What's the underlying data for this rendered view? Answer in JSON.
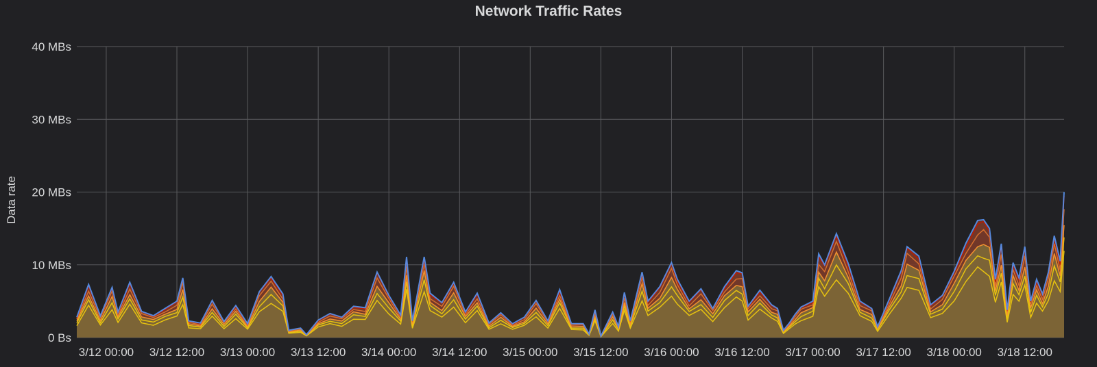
{
  "chart_data": {
    "type": "area",
    "title": "Network Traffic Rates",
    "xlabel": "",
    "ylabel": "Data rate",
    "y_ticks": [
      "0 Bs",
      "10 MBs",
      "20 MBs",
      "30 MBs",
      "40 MBs"
    ],
    "ylim": [
      0,
      40
    ],
    "y_unit": "MBs",
    "x_ticks": [
      "3/12 00:00",
      "3/12 12:00",
      "3/13 00:00",
      "3/13 12:00",
      "3/14 00:00",
      "3/14 12:00",
      "3/15 00:00",
      "3/15 12:00",
      "3/16 00:00",
      "3/16 12:00",
      "3/17 00:00",
      "3/17 12:00",
      "3/18 00:00",
      "3/18 12:00"
    ],
    "xlim": [
      "3/11 19:00",
      "3/18 18:40"
    ],
    "grid": true,
    "stacked": true,
    "series_colors": [
      "#f2cc0c",
      "#f2cc0c",
      "#ff9830",
      "#e0752d",
      "#bf1b00",
      "#5794f2"
    ],
    "total_profile": [
      [
        "3/11 19:00",
        2.8
      ],
      [
        "3/11 21:00",
        7.3
      ],
      [
        "3/11 23:00",
        3.0
      ],
      [
        "3/12 01:00",
        6.9
      ],
      [
        "3/12 02:00",
        3.5
      ],
      [
        "3/12 04:00",
        7.6
      ],
      [
        "3/12 06:00",
        3.6
      ],
      [
        "3/12 08:00",
        3.0
      ],
      [
        "3/12 10:00",
        4.0
      ],
      [
        "3/12 12:00",
        5.0
      ],
      [
        "3/12 13:00",
        8.2
      ],
      [
        "3/12 14:00",
        2.3
      ],
      [
        "3/12 16:00",
        2.0
      ],
      [
        "3/12 18:00",
        5.1
      ],
      [
        "3/12 20:00",
        2.2
      ],
      [
        "3/12 22:00",
        4.4
      ],
      [
        "3/13 00:00",
        1.9
      ],
      [
        "3/13 02:00",
        6.3
      ],
      [
        "3/13 04:00",
        8.4
      ],
      [
        "3/13 06:00",
        6.0
      ],
      [
        "3/13 07:00",
        1.0
      ],
      [
        "3/13 09:00",
        1.3
      ],
      [
        "3/13 10:00",
        0.4
      ],
      [
        "3/13 12:00",
        2.4
      ],
      [
        "3/13 14:00",
        3.3
      ],
      [
        "3/13 16:00",
        2.8
      ],
      [
        "3/13 18:00",
        4.3
      ],
      [
        "3/13 20:00",
        4.1
      ],
      [
        "3/13 22:00",
        9.0
      ],
      [
        "3/14 00:00",
        5.8
      ],
      [
        "3/14 02:00",
        3.1
      ],
      [
        "3/14 03:00",
        11.1
      ],
      [
        "3/14 04:00",
        2.3
      ],
      [
        "3/14 06:00",
        11.1
      ],
      [
        "3/14 07:00",
        6.1
      ],
      [
        "3/14 09:00",
        4.8
      ],
      [
        "3/14 11:00",
        7.6
      ],
      [
        "3/14 13:00",
        3.5
      ],
      [
        "3/14 15:00",
        6.1
      ],
      [
        "3/14 17:00",
        2.0
      ],
      [
        "3/14 19:00",
        3.4
      ],
      [
        "3/14 21:00",
        1.9
      ],
      [
        "3/14 23:00",
        2.8
      ],
      [
        "3/15 01:00",
        5.1
      ],
      [
        "3/15 03:00",
        2.3
      ],
      [
        "3/15 05:00",
        6.6
      ],
      [
        "3/15 07:00",
        1.9
      ],
      [
        "3/15 09:00",
        1.9
      ],
      [
        "3/15 10:00",
        0.5
      ],
      [
        "3/15 11:00",
        3.8
      ],
      [
        "3/15 12:00",
        0.2
      ],
      [
        "3/15 14:00",
        3.5
      ],
      [
        "3/15 15:00",
        1.5
      ],
      [
        "3/15 16:00",
        6.2
      ],
      [
        "3/15 17:00",
        2.3
      ],
      [
        "3/15 19:00",
        9.0
      ],
      [
        "3/15 20:00",
        5.0
      ],
      [
        "3/15 22:00",
        7.0
      ],
      [
        "3/16 00:00",
        10.3
      ],
      [
        "3/16 01:00",
        8.0
      ],
      [
        "3/16 03:00",
        5.0
      ],
      [
        "3/16 05:00",
        6.7
      ],
      [
        "3/16 07:00",
        4.0
      ],
      [
        "3/16 09:00",
        7.0
      ],
      [
        "3/16 11:00",
        9.2
      ],
      [
        "3/16 12:00",
        8.9
      ],
      [
        "3/16 13:00",
        4.3
      ],
      [
        "3/16 15:00",
        6.5
      ],
      [
        "3/16 17:00",
        4.5
      ],
      [
        "3/16 18:00",
        4.0
      ],
      [
        "3/16 19:00",
        1.0
      ],
      [
        "3/16 20:00",
        2.0
      ],
      [
        "3/16 21:00",
        3.2
      ],
      [
        "3/16 22:00",
        4.2
      ],
      [
        "3/17 00:00",
        5.0
      ],
      [
        "3/17 01:00",
        11.5
      ],
      [
        "3/17 02:00",
        10.0
      ],
      [
        "3/17 04:00",
        14.3
      ],
      [
        "3/17 06:00",
        10.2
      ],
      [
        "3/17 08:00",
        5.0
      ],
      [
        "3/17 10:00",
        4.0
      ],
      [
        "3/17 11:00",
        1.5
      ],
      [
        "3/17 13:00",
        5.3
      ],
      [
        "3/17 15:00",
        9.2
      ],
      [
        "3/17 16:00",
        12.5
      ],
      [
        "3/17 18:00",
        11.2
      ],
      [
        "3/17 20:00",
        4.5
      ],
      [
        "3/17 22:00",
        5.8
      ],
      [
        "3/18 00:00",
        9.1
      ],
      [
        "3/18 02:00",
        13.0
      ],
      [
        "3/18 04:00",
        16.1
      ],
      [
        "3/18 05:00",
        16.2
      ],
      [
        "3/18 06:00",
        15.0
      ],
      [
        "3/18 07:00",
        8.0
      ],
      [
        "3/18 08:00",
        12.9
      ],
      [
        "3/18 09:00",
        3.8
      ],
      [
        "3/18 10:00",
        10.3
      ],
      [
        "3/18 11:00",
        8.2
      ],
      [
        "3/18 12:00",
        12.5
      ],
      [
        "3/18 13:00",
        5.0
      ],
      [
        "3/18 14:00",
        8.0
      ],
      [
        "3/18 15:00",
        6.0
      ],
      [
        "3/18 16:00",
        9.0
      ],
      [
        "3/18 17:00",
        14.0
      ],
      [
        "3/18 18:00",
        10.5
      ],
      [
        "3/18 18:40",
        20.0
      ]
    ]
  }
}
